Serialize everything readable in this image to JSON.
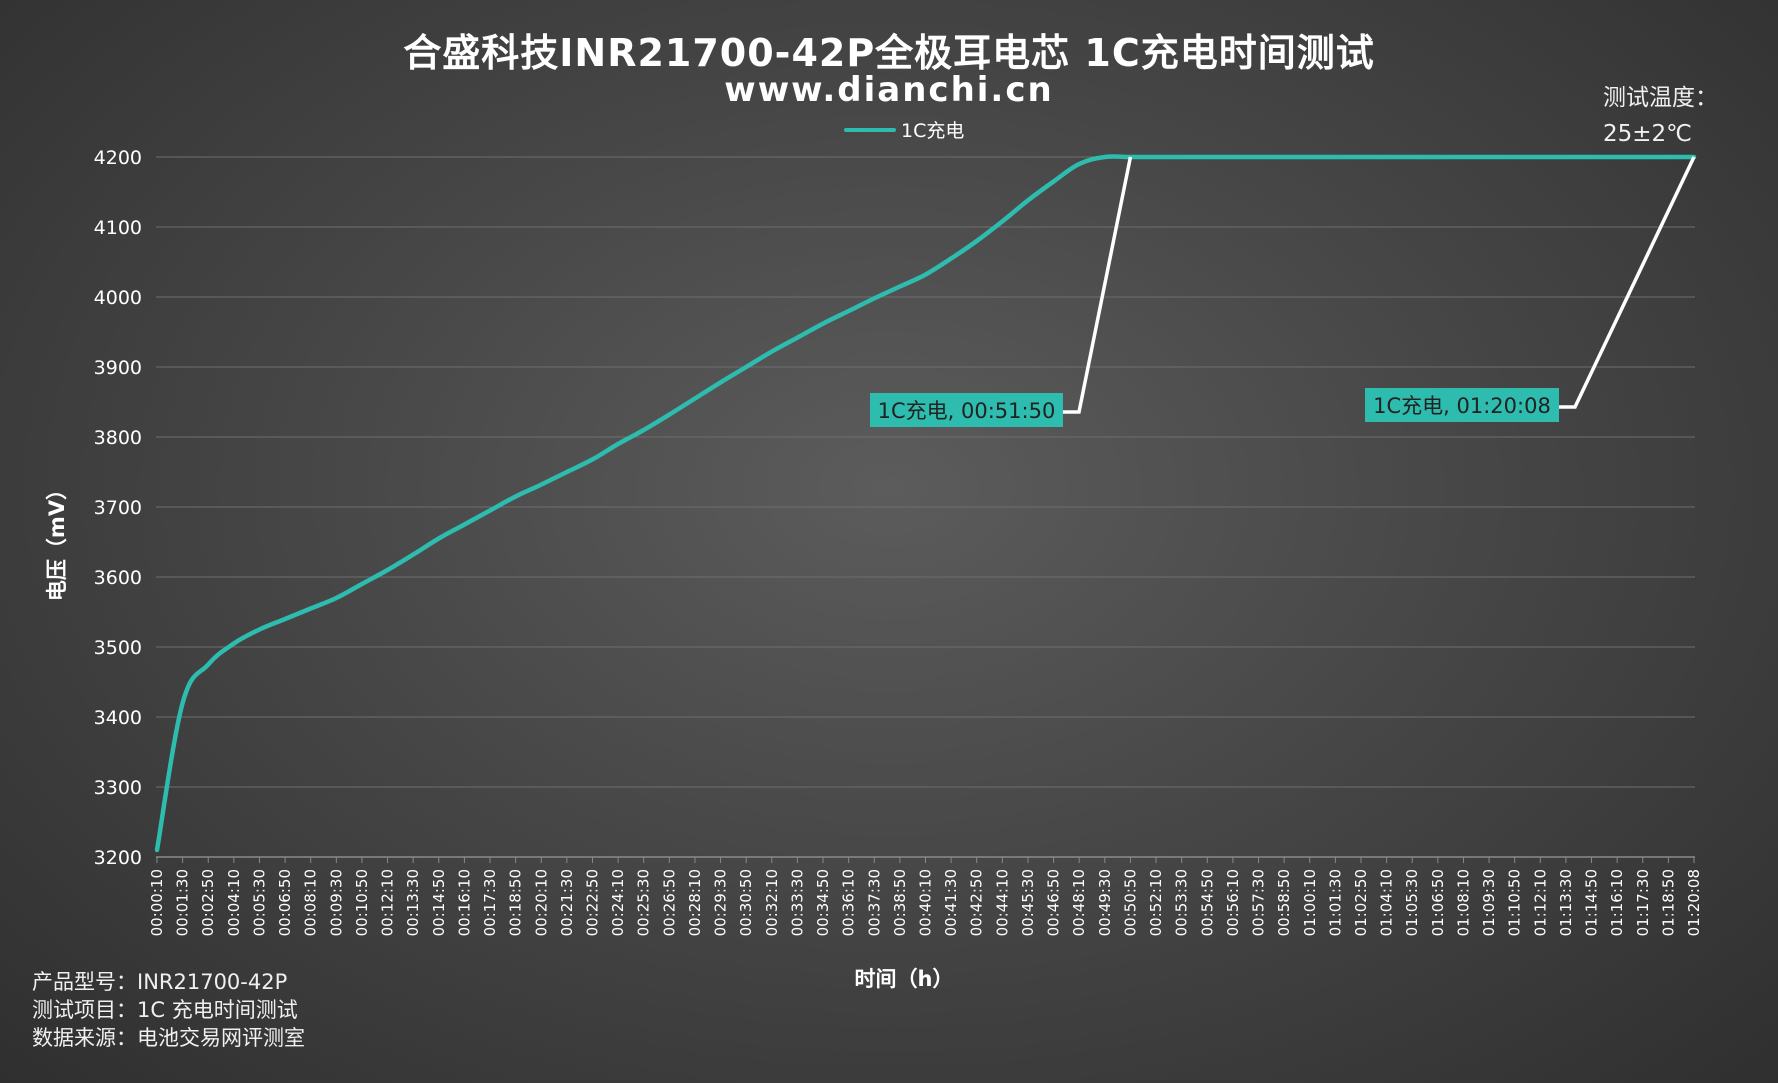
{
  "chart_data": {
    "type": "line",
    "title": "合盛科技INR21700-42P全极耳电芯 1C充电时间测试",
    "subtitle": "www.dianchi.cn",
    "xlabel": "时间（h）",
    "ylabel": "电压（mV）",
    "ylim": [
      3200,
      4200
    ],
    "yticks": [
      3200,
      3300,
      3400,
      3500,
      3600,
      3700,
      3800,
      3900,
      4000,
      4100,
      4200
    ],
    "grid": true,
    "legend_position": "top-center",
    "colors": {
      "series": "#2dbcae",
      "leader": "#ffffff",
      "annotation_bg": "#2dbcae",
      "grid": "#6e6e6e"
    },
    "x": [
      "00:00:10",
      "00:01:30",
      "00:02:50",
      "00:04:10",
      "00:05:30",
      "00:06:50",
      "00:08:10",
      "00:09:30",
      "00:10:50",
      "00:12:10",
      "00:13:30",
      "00:14:50",
      "00:16:10",
      "00:17:30",
      "00:18:50",
      "00:20:10",
      "00:21:30",
      "00:22:50",
      "00:24:10",
      "00:25:30",
      "00:26:50",
      "00:28:10",
      "00:29:30",
      "00:30:50",
      "00:32:10",
      "00:33:30",
      "00:34:50",
      "00:36:10",
      "00:37:30",
      "00:38:50",
      "00:40:10",
      "00:41:30",
      "00:42:50",
      "00:44:10",
      "00:45:30",
      "00:46:50",
      "00:48:10",
      "00:49:30",
      "00:50:50",
      "00:52:10",
      "00:53:30",
      "00:54:50",
      "00:56:10",
      "00:57:30",
      "00:58:50",
      "01:00:10",
      "01:01:30",
      "01:02:50",
      "01:04:10",
      "01:05:30",
      "01:06:50",
      "01:08:10",
      "01:09:30",
      "01:10:50",
      "01:12:10",
      "01:13:30",
      "01:14:50",
      "01:16:10",
      "01:17:30",
      "01:18:50",
      "01:20:08"
    ],
    "series": [
      {
        "name": "1C充电",
        "values": [
          3210,
          3420,
          3475,
          3505,
          3525,
          3540,
          3555,
          3570,
          3590,
          3610,
          3632,
          3655,
          3675,
          3695,
          3715,
          3732,
          3750,
          3768,
          3790,
          3810,
          3832,
          3855,
          3878,
          3900,
          3922,
          3942,
          3962,
          3980,
          3998,
          4015,
          4032,
          4055,
          4080,
          4108,
          4138,
          4165,
          4190,
          4200,
          4200,
          4200,
          4200,
          4200,
          4200,
          4200,
          4200,
          4200,
          4200,
          4200,
          4200,
          4200,
          4200,
          4200,
          4200,
          4200,
          4200,
          4200,
          4200,
          4200,
          4200,
          4200,
          4200
        ]
      }
    ],
    "annotations": [
      {
        "label": "1C充电, 00:51:50",
        "x_index": 38,
        "y": 4200
      },
      {
        "label": "1C充电, 01:20:08",
        "x_index": 60,
        "y": 4200
      }
    ]
  },
  "temperature_note": {
    "line1": "测试温度：",
    "line2": "25±2℃"
  },
  "footer": {
    "model": "产品型号：INR21700-42P",
    "item": "测试项目：1C 充电时间测试",
    "source": "数据来源：电池交易网评测室"
  }
}
